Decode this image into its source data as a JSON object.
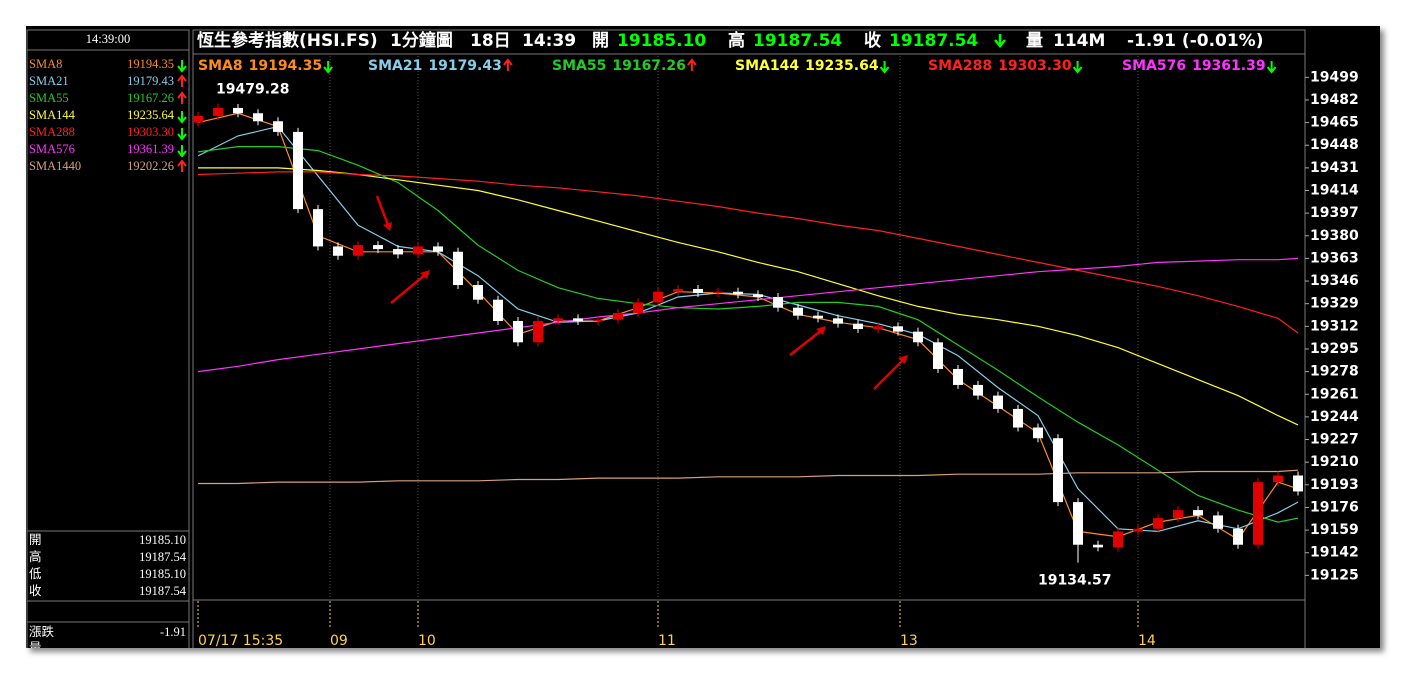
{
  "header": {
    "symbol": "恆生參考指數(HSI.FS)",
    "interval": "1分鐘圖",
    "day": "18日",
    "time": "14:39",
    "open_label": "開",
    "open": "19185.10",
    "high_label": "高",
    "high": "19187.54",
    "close_label": "收",
    "close": "19187.54",
    "volume_label": "量",
    "volume": "114M",
    "change": "-1.91 (-0.01%)"
  },
  "panel": {
    "time": "14:39:00",
    "rows": [
      [
        "開",
        "19185.10"
      ],
      [
        "高",
        "19187.54"
      ],
      [
        "低",
        "19185.10"
      ],
      [
        "收",
        "19187.54"
      ]
    ],
    "change_label": "漲跌",
    "change": "-1.91",
    "volume_label": "量"
  },
  "chart_data": {
    "type": "candlestick",
    "xlim": [
      0,
      277
    ],
    "xticks": [
      {
        "value": 0,
        "label": "07/17 15:35"
      },
      {
        "value": 33,
        "label": "09"
      },
      {
        "value": 55,
        "label": "10"
      },
      {
        "value": 115,
        "label": "11"
      },
      {
        "value": 175.5,
        "label": "13"
      },
      {
        "value": 235,
        "label": "14"
      }
    ],
    "ylim": [
      19108,
      19515
    ],
    "yticks": [
      19125,
      19142,
      19159,
      19176,
      19193,
      19210,
      19227,
      19244,
      19261,
      19278,
      19295,
      19312,
      19329,
      19346,
      19363,
      19380,
      19397,
      19414,
      19431,
      19448,
      19465,
      19482,
      19499
    ],
    "grid": true,
    "candles": {
      "up_color": "#e00000",
      "down_color": "#ffffff",
      "x": [
        0,
        5,
        10,
        15,
        20,
        25,
        30,
        35,
        40,
        45,
        50,
        55,
        60,
        65,
        70,
        75,
        80,
        85,
        90,
        95,
        100,
        105,
        110,
        115,
        120,
        125,
        130,
        135,
        140,
        145,
        150,
        155,
        160,
        165,
        170,
        175,
        180,
        185,
        190,
        195,
        200,
        205,
        210,
        215,
        220,
        225,
        230,
        235,
        240,
        245,
        250,
        255,
        260,
        265,
        270,
        275
      ],
      "open": [
        19465,
        19470,
        19476,
        19472,
        19466,
        19458,
        19400,
        19372,
        19365,
        19373,
        19370,
        19366,
        19372,
        19368,
        19343,
        19332,
        19316,
        19300,
        19316,
        19318,
        19316,
        19317,
        19322,
        19330,
        19338,
        19340,
        19337,
        19338,
        19336,
        19334,
        19326,
        19320,
        19318,
        19314,
        19310,
        19312,
        19308,
        19300,
        19280,
        19268,
        19260,
        19250,
        19236,
        19228,
        19180,
        19148,
        19146,
        19158,
        19160,
        19168,
        19174,
        19170,
        19160,
        19148,
        19195,
        19200
      ],
      "high": [
        19473,
        19479.28,
        19479,
        19475,
        19469,
        19461,
        19403,
        19375,
        19376,
        19376,
        19373,
        19375,
        19375,
        19371,
        19346,
        19335,
        19319,
        19319,
        19321,
        19321,
        19320,
        19325,
        19333,
        19341,
        19343,
        19343,
        19341,
        19341,
        19339,
        19337,
        19329,
        19323,
        19321,
        19317,
        19315,
        19315,
        19311,
        19303,
        19283,
        19271,
        19263,
        19253,
        19239,
        19231,
        19183,
        19151,
        19161,
        19163,
        19171,
        19177,
        19177,
        19173,
        19163,
        19198,
        19203,
        19203
      ],
      "low": [
        19462,
        19467,
        19469,
        19463,
        19455,
        19397,
        19369,
        19362,
        19362,
        19367,
        19363,
        19363,
        19365,
        19340,
        19329,
        19313,
        19297,
        19297,
        19313,
        19313,
        19313,
        19314,
        19319,
        19327,
        19335,
        19334,
        19334,
        19333,
        19331,
        19323,
        19317,
        19315,
        19311,
        19307,
        19307,
        19305,
        19297,
        19277,
        19265,
        19257,
        19247,
        19233,
        19225,
        19177,
        19134.57,
        19143,
        19143,
        19155,
        19157,
        19165,
        19167,
        19157,
        19145,
        19145,
        19192,
        19185
      ],
      "close": [
        19470,
        19476,
        19472,
        19466,
        19458,
        19400,
        19372,
        19365,
        19373,
        19370,
        19366,
        19372,
        19368,
        19343,
        19332,
        19316,
        19300,
        19316,
        19318,
        19316,
        19317,
        19322,
        19330,
        19338,
        19340,
        19337,
        19338,
        19336,
        19334,
        19326,
        19320,
        19318,
        19314,
        19310,
        19312,
        19308,
        19300,
        19280,
        19268,
        19260,
        19250,
        19236,
        19228,
        19180,
        19148,
        19146,
        19158,
        19160,
        19168,
        19174,
        19170,
        19160,
        19148,
        19195,
        19200,
        19188
      ]
    },
    "x": [
      0,
      10,
      20,
      30,
      40,
      50,
      60,
      70,
      80,
      90,
      100,
      110,
      120,
      130,
      140,
      150,
      160,
      170,
      180,
      190,
      200,
      210,
      220,
      230,
      240,
      250,
      260,
      270,
      275
    ],
    "series": [
      {
        "name": "SMA8",
        "color": "#ff8c1a",
        "last": "19194.35",
        "trend": "down",
        "legend": true,
        "values": [
          19465,
          19472,
          19462,
          19380,
          19368,
          19368,
          19368,
          19338,
          19306,
          19316,
          19316,
          19326,
          19338,
          19337,
          19334,
          19321,
          19315,
          19311,
          19302,
          19272,
          19252,
          19232,
          19158,
          19154,
          19165,
          19170,
          19152,
          19195,
          19190
        ]
      },
      {
        "name": "SMA21",
        "color": "#87ceeb",
        "last": "19179.43",
        "trend": "up",
        "legend": true,
        "values": [
          19440,
          19455,
          19462,
          19425,
          19388,
          19372,
          19368,
          19350,
          19325,
          19315,
          19316,
          19322,
          19334,
          19337,
          19336,
          19328,
          19320,
          19314,
          19306,
          19290,
          19266,
          19245,
          19190,
          19160,
          19158,
          19166,
          19160,
          19172,
          19180
        ]
      },
      {
        "name": "SMA55",
        "color": "#22cc22",
        "last": "19167.26",
        "trend": "up",
        "legend": true,
        "values": [
          19443,
          19447,
          19447,
          19444,
          19433,
          19420,
          19399,
          19373,
          19354,
          19341,
          19333,
          19329,
          19326,
          19325,
          19327,
          19330,
          19330,
          19327,
          19317,
          19298,
          19279,
          19259,
          19240,
          19223,
          19204,
          19185,
          19174,
          19165,
          19168
        ]
      },
      {
        "name": "SMA144",
        "color": "#ffff33",
        "last": "19235.64",
        "trend": "down",
        "legend": true,
        "values": [
          19431,
          19431,
          19431,
          19429,
          19426,
          19422,
          19418,
          19414,
          19407,
          19399,
          19391,
          19383,
          19375,
          19368,
          19360,
          19353,
          19344,
          19335,
          19327,
          19321,
          19317,
          19312,
          19305,
          19296,
          19284,
          19272,
          19260,
          19245,
          19238
        ]
      },
      {
        "name": "SMA288",
        "color": "#ff2020",
        "last": "19303.30",
        "trend": "down",
        "legend": true,
        "values": [
          19426,
          19427,
          19428,
          19428,
          19426,
          19425,
          19423,
          19421,
          19418,
          19416,
          19413,
          19410,
          19406,
          19402,
          19397,
          19393,
          19388,
          19384,
          19378,
          19372,
          19366,
          19360,
          19354,
          19348,
          19342,
          19335,
          19327,
          19318,
          19307
        ]
      },
      {
        "name": "SMA576",
        "color": "#ff33ff",
        "last": "19361.39",
        "trend": "down",
        "legend": true,
        "values": [
          19278,
          19282,
          19287,
          19291,
          19295,
          19299,
          19303,
          19307,
          19311,
          19315,
          19319,
          19322,
          19326,
          19329,
          19332,
          19335,
          19338,
          19341,
          19344,
          19347,
          19350,
          19353,
          19355,
          19357,
          19360,
          19361,
          19362,
          19362,
          19363
        ]
      },
      {
        "name": "SMA1440",
        "color": "#d9a07a",
        "last": "19202.26",
        "trend": "up",
        "legend": false,
        "values": [
          19194,
          19194,
          19195,
          19195,
          19195,
          19196,
          19196,
          19196,
          19197,
          19197,
          19198,
          19198,
          19198,
          19199,
          19199,
          19199,
          19200,
          19200,
          19200,
          19201,
          19201,
          19201,
          19202,
          19202,
          19202,
          19203,
          19203,
          19203,
          19204
        ]
      }
    ]
  }
}
